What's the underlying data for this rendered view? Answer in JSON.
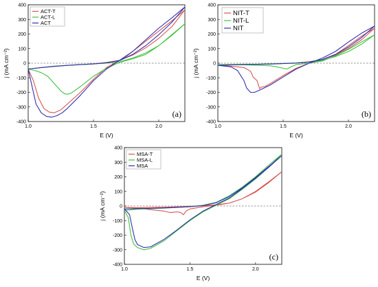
{
  "chart_data": [
    {
      "type": "line",
      "panel_label": "(a)",
      "xlabel": "E (V)",
      "ylabel": "j (mA cm⁻²)",
      "xlim": [
        1.0,
        2.2
      ],
      "ylim": [
        -400,
        400
      ],
      "xticks": [
        1.0,
        1.5,
        2.0
      ],
      "yticks": [
        -400,
        -300,
        -200,
        -100,
        0,
        100,
        200,
        300,
        400
      ],
      "grid": false,
      "zero_line": "dashed",
      "legend_placement": "top-left",
      "legend_size": "small",
      "series": [
        {
          "name": "ACT-T",
          "color": "#d9534f",
          "x": [
            1.0,
            1.04,
            1.08,
            1.12,
            1.16,
            1.2,
            1.25,
            1.3,
            1.4,
            1.5,
            1.6,
            1.7,
            1.75,
            1.8,
            1.9,
            2.0,
            2.1,
            2.2,
            2.1,
            2.0,
            1.9,
            1.8,
            1.7,
            1.6,
            1.5,
            1.4,
            1.3,
            1.2,
            1.1,
            1.0
          ],
          "y": [
            -40,
            -120,
            -240,
            -310,
            -335,
            -340,
            -320,
            -280,
            -200,
            -110,
            -30,
            20,
            45,
            80,
            150,
            220,
            290,
            365,
            250,
            170,
            105,
            55,
            20,
            5,
            -5,
            -10,
            -15,
            -22,
            -30,
            -40
          ]
        },
        {
          "name": "ACT-L",
          "color": "#3fc23f",
          "x": [
            1.0,
            1.05,
            1.1,
            1.15,
            1.2,
            1.25,
            1.28,
            1.3,
            1.33,
            1.4,
            1.5,
            1.6,
            1.7,
            1.8,
            1.9,
            2.0,
            2.1,
            2.2,
            2.1,
            2.0,
            1.9,
            1.8,
            1.7,
            1.6,
            1.5,
            1.4,
            1.3,
            1.2,
            1.1,
            1.0
          ],
          "y": [
            -40,
            -50,
            -65,
            -90,
            -140,
            -190,
            -210,
            -213,
            -205,
            -160,
            -90,
            -35,
            5,
            30,
            60,
            120,
            195,
            270,
            190,
            120,
            70,
            35,
            10,
            0,
            -5,
            -10,
            -15,
            -20,
            -30,
            -40
          ]
        },
        {
          "name": "ACT",
          "color": "#3030b0",
          "x": [
            1.0,
            1.03,
            1.06,
            1.1,
            1.14,
            1.18,
            1.22,
            1.26,
            1.3,
            1.4,
            1.5,
            1.6,
            1.7,
            1.8,
            1.9,
            2.0,
            2.1,
            2.2,
            2.1,
            2.0,
            1.9,
            1.8,
            1.7,
            1.6,
            1.5,
            1.4,
            1.3,
            1.2,
            1.1,
            1.0
          ],
          "y": [
            -40,
            -160,
            -280,
            -340,
            -365,
            -370,
            -360,
            -340,
            -310,
            -220,
            -120,
            -40,
            20,
            80,
            160,
            240,
            310,
            385,
            280,
            195,
            120,
            60,
            18,
            3,
            -5,
            -10,
            -15,
            -22,
            -30,
            -40
          ]
        }
      ]
    },
    {
      "type": "line",
      "panel_label": "(b)",
      "xlabel": "E (V)",
      "ylabel": "j (mA cm⁻²)",
      "xlim": [
        1.0,
        2.2
      ],
      "ylim": [
        -400,
        400
      ],
      "xticks": [
        1.0,
        1.5,
        2.0
      ],
      "yticks": [
        -400,
        -300,
        -200,
        -100,
        0,
        100,
        200,
        300,
        400
      ],
      "grid": false,
      "zero_line": "dashed",
      "legend_placement": "top-left",
      "legend_size": "large",
      "series": [
        {
          "name": "NIT-T",
          "color": "#d9534f",
          "x": [
            1.0,
            1.1,
            1.2,
            1.25,
            1.27,
            1.3,
            1.32,
            1.33,
            1.36,
            1.4,
            1.5,
            1.6,
            1.7,
            1.8,
            1.9,
            2.0,
            2.1,
            2.2,
            2.1,
            2.0,
            1.9,
            1.8,
            1.7,
            1.6,
            1.5,
            1.4,
            1.3,
            1.2,
            1.1,
            1.0
          ],
          "y": [
            -15,
            -20,
            -30,
            -55,
            -95,
            -120,
            -175,
            -165,
            -160,
            -140,
            -85,
            -35,
            0,
            25,
            60,
            120,
            185,
            240,
            160,
            100,
            55,
            25,
            10,
            2,
            -2,
            -5,
            -8,
            -10,
            -12,
            -15
          ]
        },
        {
          "name": "NIT-L",
          "color": "#3fc23f",
          "x": [
            1.0,
            1.2,
            1.3,
            1.4,
            1.45,
            1.5,
            1.53,
            1.56,
            1.6,
            1.7,
            1.8,
            1.9,
            2.0,
            2.1,
            2.2,
            2.1,
            2.0,
            1.9,
            1.8,
            1.7,
            1.6,
            1.5,
            1.4,
            1.3,
            1.2,
            1.0
          ],
          "y": [
            -10,
            -12,
            -14,
            -18,
            -25,
            -35,
            -40,
            -25,
            -10,
            0,
            15,
            50,
            95,
            145,
            195,
            130,
            80,
            45,
            20,
            8,
            2,
            -2,
            -5,
            -7,
            -8,
            -10
          ]
        },
        {
          "name": "NIT",
          "color": "#3030b0",
          "x": [
            1.0,
            1.1,
            1.15,
            1.2,
            1.22,
            1.25,
            1.28,
            1.32,
            1.4,
            1.5,
            1.6,
            1.7,
            1.8,
            1.9,
            2.0,
            2.1,
            2.2,
            2.1,
            2.0,
            1.9,
            1.8,
            1.7,
            1.6,
            1.5,
            1.4,
            1.3,
            1.2,
            1.1,
            1.0
          ],
          "y": [
            -15,
            -25,
            -50,
            -120,
            -170,
            -200,
            -200,
            -185,
            -150,
            -95,
            -40,
            0,
            35,
            80,
            145,
            205,
            255,
            175,
            110,
            60,
            25,
            8,
            0,
            -3,
            -6,
            -8,
            -10,
            -12,
            -15
          ]
        }
      ]
    },
    {
      "type": "line",
      "panel_label": "(c)",
      "xlabel": "E (V)",
      "ylabel": "j (mA cm⁻²)",
      "xlim": [
        1.0,
        2.2
      ],
      "ylim": [
        -400,
        400
      ],
      "xticks": [
        1.0,
        1.5,
        2.0
      ],
      "yticks": [
        -400,
        -300,
        -200,
        -100,
        0,
        100,
        200,
        300,
        400
      ],
      "grid": false,
      "zero_line": "dashed",
      "legend_placement": "top-left",
      "legend_size": "small",
      "series": [
        {
          "name": "MSA-T",
          "color": "#d9534f",
          "x": [
            1.0,
            1.1,
            1.2,
            1.3,
            1.35,
            1.4,
            1.43,
            1.45,
            1.47,
            1.5,
            1.6,
            1.7,
            1.8,
            1.9,
            2.0,
            2.1,
            2.2,
            2.1,
            2.0,
            1.9,
            1.8,
            1.7,
            1.6,
            1.5,
            1.4,
            1.3,
            1.2,
            1.1,
            1.0
          ],
          "y": [
            -10,
            -15,
            -25,
            -35,
            -45,
            -40,
            -45,
            -60,
            -35,
            -20,
            -5,
            5,
            20,
            50,
            100,
            165,
            235,
            160,
            95,
            50,
            20,
            8,
            2,
            -2,
            -5,
            -8,
            -10,
            -12,
            -10
          ]
        },
        {
          "name": "MSA-L",
          "color": "#3fc23f",
          "x": [
            1.0,
            1.03,
            1.05,
            1.07,
            1.1,
            1.15,
            1.2,
            1.3,
            1.4,
            1.5,
            1.6,
            1.7,
            1.8,
            1.9,
            2.0,
            2.1,
            2.2,
            2.1,
            2.0,
            1.9,
            1.8,
            1.7,
            1.6,
            1.5,
            1.4,
            1.3,
            1.2,
            1.1,
            1.0
          ],
          "y": [
            -30,
            -80,
            -200,
            -260,
            -285,
            -300,
            -290,
            -240,
            -170,
            -100,
            -40,
            5,
            50,
            115,
            185,
            265,
            355,
            280,
            200,
            130,
            70,
            25,
            5,
            -5,
            -10,
            -15,
            -18,
            -22,
            -30
          ]
        },
        {
          "name": "MSA",
          "color": "#3030b0",
          "x": [
            1.0,
            1.04,
            1.06,
            1.08,
            1.1,
            1.15,
            1.2,
            1.3,
            1.4,
            1.5,
            1.6,
            1.7,
            1.8,
            1.9,
            2.0,
            2.1,
            2.2,
            2.1,
            2.0,
            1.9,
            1.8,
            1.7,
            1.6,
            1.5,
            1.4,
            1.3,
            1.2,
            1.1,
            1.0
          ],
          "y": [
            -20,
            -60,
            -150,
            -230,
            -265,
            -285,
            -280,
            -230,
            -165,
            -95,
            -35,
            10,
            55,
            120,
            190,
            265,
            345,
            270,
            195,
            125,
            65,
            22,
            3,
            -5,
            -10,
            -13,
            -16,
            -18,
            -20
          ]
        }
      ]
    }
  ]
}
